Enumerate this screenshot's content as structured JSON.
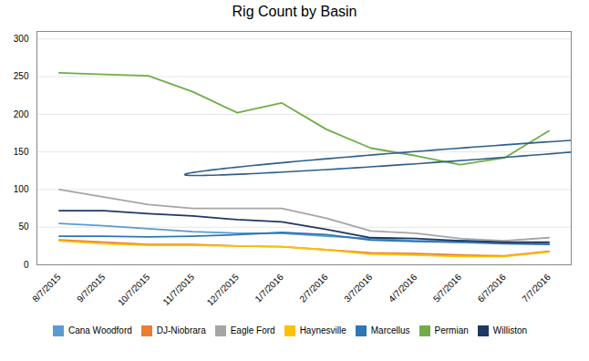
{
  "chart_data": {
    "type": "line",
    "title": "Rig Count by Basin",
    "categories": [
      "8/7/2015",
      "9/7/2015",
      "10/7/2015",
      "11/7/2015",
      "12/7/2015",
      "1/7/2016",
      "2/7/2016",
      "3/7/2016",
      "4/7/2016",
      "5/7/2016",
      "6/7/2016",
      "7/7/2016"
    ],
    "series": [
      {
        "name": "Cana Woodford",
        "color": "#5B9BD5",
        "values": [
          55,
          52,
          48,
          44,
          42,
          42,
          38,
          35,
          32,
          32,
          30,
          28
        ]
      },
      {
        "name": "DJ-Niobrara",
        "color": "#ED7D31",
        "values": [
          33,
          30,
          27,
          27,
          25,
          24,
          20,
          16,
          15,
          13,
          12,
          18
        ]
      },
      {
        "name": "Eagle Ford",
        "color": "#A5A5A5",
        "values": [
          100,
          90,
          80,
          75,
          75,
          75,
          62,
          45,
          42,
          35,
          32,
          36
        ]
      },
      {
        "name": "Haynesville",
        "color": "#FFC000",
        "values": [
          32,
          28,
          26,
          26,
          25,
          24,
          20,
          14,
          13,
          11,
          11,
          17
        ]
      },
      {
        "name": "Marcellus",
        "color": "#2E75B6",
        "values": [
          38,
          38,
          37,
          38,
          40,
          43,
          40,
          33,
          31,
          30,
          28,
          27
        ]
      },
      {
        "name": "Permian",
        "color": "#70AD47",
        "values": [
          255,
          253,
          251,
          230,
          202,
          215,
          180,
          155,
          145,
          133,
          142,
          178
        ]
      },
      {
        "name": "Williston",
        "color": "#1F3864",
        "values": [
          72,
          72,
          68,
          65,
          60,
          57,
          47,
          36,
          35,
          32,
          30,
          30
        ]
      }
    ],
    "ylim": [
      0,
      310
    ],
    "yticks": [
      0,
      50,
      100,
      150,
      200,
      250,
      300
    ],
    "grid": true,
    "legend": "bottom",
    "ellipse": {
      "x": 9.3,
      "y": 148,
      "width": 3.6,
      "height": 60,
      "angle": -12,
      "color": "#2E5F8A"
    }
  }
}
